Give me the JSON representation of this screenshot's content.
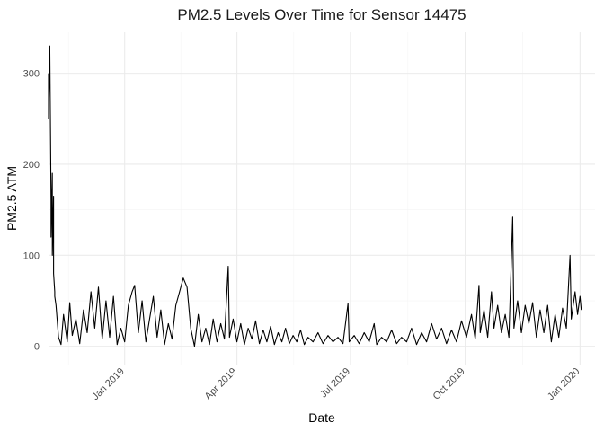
{
  "chart_data": {
    "type": "line",
    "title": "PM2.5 Levels Over Time for Sensor 14475",
    "xlabel": "Date",
    "ylabel": "PM2.5 ATM",
    "xlim": [
      "2018-11-01",
      "2020-01-13"
    ],
    "ylim": [
      -20,
      345
    ],
    "grid": true,
    "x_ticks": [
      {
        "date": "2019-01-01",
        "label": "Jan 2019"
      },
      {
        "date": "2019-04-01",
        "label": "Apr 2019"
      },
      {
        "date": "2019-07-01",
        "label": "Jul 2019"
      },
      {
        "date": "2019-10-01",
        "label": "Oct 2019"
      },
      {
        "date": "2020-01-01",
        "label": "Jan 2020"
      }
    ],
    "y_ticks": [
      0,
      100,
      200,
      300
    ],
    "series": [
      {
        "color": "#000000",
        "points": [
          [
            "2018-11-01",
            300
          ],
          [
            "2018-11-01",
            250
          ],
          [
            "2018-11-02",
            320
          ],
          [
            "2018-11-02",
            330
          ],
          [
            "2018-11-03",
            160
          ],
          [
            "2018-11-03",
            120
          ],
          [
            "2018-11-04",
            190
          ],
          [
            "2018-11-04",
            100
          ],
          [
            "2018-11-05",
            165
          ],
          [
            "2018-11-05",
            80
          ],
          [
            "2018-11-06",
            60
          ],
          [
            "2018-11-06",
            55
          ],
          [
            "2018-11-07",
            45
          ],
          [
            "2018-11-09",
            10
          ],
          [
            "2018-11-11",
            2
          ],
          [
            "2018-11-13",
            35
          ],
          [
            "2018-11-16",
            5
          ],
          [
            "2018-11-18",
            48
          ],
          [
            "2018-11-20",
            12
          ],
          [
            "2018-11-23",
            30
          ],
          [
            "2018-11-26",
            3
          ],
          [
            "2018-11-29",
            40
          ],
          [
            "2018-12-02",
            15
          ],
          [
            "2018-12-05",
            60
          ],
          [
            "2018-12-08",
            20
          ],
          [
            "2018-12-11",
            65
          ],
          [
            "2018-12-14",
            8
          ],
          [
            "2018-12-17",
            50
          ],
          [
            "2018-12-20",
            10
          ],
          [
            "2018-12-23",
            55
          ],
          [
            "2018-12-26",
            2
          ],
          [
            "2018-12-29",
            20
          ],
          [
            "2019-01-01",
            5
          ],
          [
            "2019-01-04",
            45
          ],
          [
            "2019-01-07",
            60
          ],
          [
            "2019-01-09",
            67
          ],
          [
            "2019-01-12",
            15
          ],
          [
            "2019-01-15",
            50
          ],
          [
            "2019-01-18",
            5
          ],
          [
            "2019-01-21",
            30
          ],
          [
            "2019-01-24",
            55
          ],
          [
            "2019-01-27",
            10
          ],
          [
            "2019-01-30",
            40
          ],
          [
            "2019-02-02",
            2
          ],
          [
            "2019-02-05",
            25
          ],
          [
            "2019-02-08",
            8
          ],
          [
            "2019-02-11",
            45
          ],
          [
            "2019-02-14",
            60
          ],
          [
            "2019-02-17",
            75
          ],
          [
            "2019-02-20",
            65
          ],
          [
            "2019-02-23",
            20
          ],
          [
            "2019-02-26",
            0
          ],
          [
            "2019-03-01",
            35
          ],
          [
            "2019-03-04",
            5
          ],
          [
            "2019-03-07",
            20
          ],
          [
            "2019-03-10",
            2
          ],
          [
            "2019-03-13",
            30
          ],
          [
            "2019-03-16",
            5
          ],
          [
            "2019-03-19",
            25
          ],
          [
            "2019-03-22",
            8
          ],
          [
            "2019-03-25",
            88
          ],
          [
            "2019-03-26",
            10
          ],
          [
            "2019-03-29",
            30
          ],
          [
            "2019-04-01",
            5
          ],
          [
            "2019-04-04",
            25
          ],
          [
            "2019-04-07",
            2
          ],
          [
            "2019-04-10",
            20
          ],
          [
            "2019-04-13",
            8
          ],
          [
            "2019-04-16",
            28
          ],
          [
            "2019-04-19",
            3
          ],
          [
            "2019-04-22",
            18
          ],
          [
            "2019-04-25",
            5
          ],
          [
            "2019-04-28",
            22
          ],
          [
            "2019-05-01",
            2
          ],
          [
            "2019-05-04",
            15
          ],
          [
            "2019-05-07",
            5
          ],
          [
            "2019-05-10",
            20
          ],
          [
            "2019-05-13",
            3
          ],
          [
            "2019-05-16",
            12
          ],
          [
            "2019-05-19",
            5
          ],
          [
            "2019-05-22",
            18
          ],
          [
            "2019-05-25",
            2
          ],
          [
            "2019-05-28",
            10
          ],
          [
            "2019-06-01",
            5
          ],
          [
            "2019-06-05",
            15
          ],
          [
            "2019-06-09",
            3
          ],
          [
            "2019-06-13",
            12
          ],
          [
            "2019-06-17",
            5
          ],
          [
            "2019-06-21",
            10
          ],
          [
            "2019-06-25",
            3
          ],
          [
            "2019-06-29",
            47
          ],
          [
            "2019-06-30",
            5
          ],
          [
            "2019-07-04",
            12
          ],
          [
            "2019-07-08",
            3
          ],
          [
            "2019-07-12",
            15
          ],
          [
            "2019-07-16",
            5
          ],
          [
            "2019-07-20",
            25
          ],
          [
            "2019-07-22",
            2
          ],
          [
            "2019-07-26",
            10
          ],
          [
            "2019-07-30",
            5
          ],
          [
            "2019-08-03",
            18
          ],
          [
            "2019-08-07",
            3
          ],
          [
            "2019-08-11",
            10
          ],
          [
            "2019-08-15",
            5
          ],
          [
            "2019-08-19",
            20
          ],
          [
            "2019-08-23",
            2
          ],
          [
            "2019-08-27",
            15
          ],
          [
            "2019-08-31",
            5
          ],
          [
            "2019-09-04",
            25
          ],
          [
            "2019-09-08",
            8
          ],
          [
            "2019-09-12",
            20
          ],
          [
            "2019-09-16",
            3
          ],
          [
            "2019-09-20",
            18
          ],
          [
            "2019-09-24",
            5
          ],
          [
            "2019-09-28",
            28
          ],
          [
            "2019-10-02",
            10
          ],
          [
            "2019-10-06",
            35
          ],
          [
            "2019-10-09",
            8
          ],
          [
            "2019-10-12",
            67
          ],
          [
            "2019-10-13",
            15
          ],
          [
            "2019-10-16",
            40
          ],
          [
            "2019-10-19",
            10
          ],
          [
            "2019-10-22",
            60
          ],
          [
            "2019-10-24",
            20
          ],
          [
            "2019-10-27",
            45
          ],
          [
            "2019-10-30",
            15
          ],
          [
            "2019-11-02",
            35
          ],
          [
            "2019-11-05",
            10
          ],
          [
            "2019-11-08",
            142
          ],
          [
            "2019-11-09",
            20
          ],
          [
            "2019-11-12",
            50
          ],
          [
            "2019-11-15",
            15
          ],
          [
            "2019-11-18",
            45
          ],
          [
            "2019-11-21",
            25
          ],
          [
            "2019-11-24",
            48
          ],
          [
            "2019-11-27",
            10
          ],
          [
            "2019-11-30",
            40
          ],
          [
            "2019-12-03",
            15
          ],
          [
            "2019-12-06",
            45
          ],
          [
            "2019-12-09",
            5
          ],
          [
            "2019-12-12",
            35
          ],
          [
            "2019-12-15",
            10
          ],
          [
            "2019-12-18",
            42
          ],
          [
            "2019-12-21",
            20
          ],
          [
            "2019-12-24",
            100
          ],
          [
            "2019-12-25",
            30
          ],
          [
            "2019-12-28",
            60
          ],
          [
            "2019-12-30",
            35
          ],
          [
            "2020-01-01",
            55
          ],
          [
            "2020-01-02",
            40
          ]
        ]
      }
    ]
  }
}
